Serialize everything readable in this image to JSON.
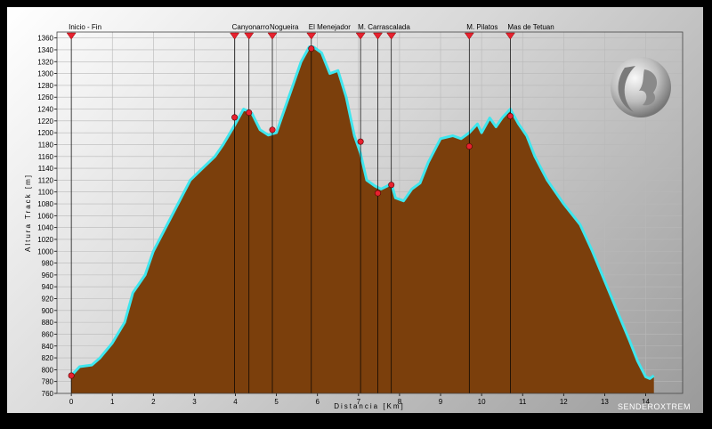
{
  "chart_data": {
    "type": "area",
    "title": "",
    "xlabel": "Distancia [Km]",
    "ylabel": "Altura Track [m]",
    "xlim": [
      -0.35,
      14.9
    ],
    "ylim": [
      760,
      1370
    ],
    "x_ticks": [
      0,
      1,
      2,
      3,
      4,
      5,
      6,
      7,
      8,
      9,
      10,
      11,
      12,
      13,
      14
    ],
    "y_ticks": [
      760,
      780,
      800,
      820,
      840,
      860,
      880,
      900,
      920,
      940,
      960,
      980,
      1000,
      1020,
      1040,
      1060,
      1080,
      1100,
      1120,
      1140,
      1160,
      1180,
      1200,
      1220,
      1240,
      1260,
      1280,
      1300,
      1320,
      1340,
      1360
    ],
    "grid": true,
    "legend": "none",
    "colors": {
      "fill": "#7b3f0c",
      "outline": "#3fe6ee",
      "marker": "#e8212f"
    },
    "profile": {
      "x": [
        0,
        0.2,
        0.5,
        0.7,
        1.0,
        1.3,
        1.5,
        1.8,
        2.0,
        2.3,
        2.6,
        2.9,
        3.2,
        3.5,
        3.7,
        4.0,
        4.2,
        4.4,
        4.6,
        4.8,
        5.0,
        5.2,
        5.4,
        5.6,
        5.8,
        5.9,
        6.1,
        6.3,
        6.5,
        6.7,
        6.9,
        7.05,
        7.2,
        7.4,
        7.55,
        7.7,
        7.8,
        7.9,
        8.1,
        8.3,
        8.5,
        8.7,
        9.0,
        9.3,
        9.5,
        9.7,
        9.9,
        10.0,
        10.2,
        10.35,
        10.5,
        10.7,
        10.9,
        11.1,
        11.3,
        11.6,
        12.0,
        12.4,
        12.7,
        13.0,
        13.3,
        13.6,
        13.8,
        14.0,
        14.1,
        14.2
      ],
      "y": [
        790,
        805,
        808,
        820,
        845,
        880,
        930,
        960,
        1000,
        1040,
        1080,
        1120,
        1140,
        1160,
        1180,
        1215,
        1240,
        1233,
        1205,
        1196,
        1200,
        1240,
        1280,
        1320,
        1345,
        1345,
        1335,
        1300,
        1305,
        1260,
        1195,
        1165,
        1120,
        1110,
        1105,
        1110,
        1115,
        1090,
        1085,
        1105,
        1115,
        1150,
        1190,
        1195,
        1190,
        1200,
        1215,
        1200,
        1225,
        1210,
        1225,
        1240,
        1215,
        1195,
        1160,
        1120,
        1080,
        1045,
        1000,
        950,
        900,
        850,
        815,
        788,
        785,
        790
      ]
    },
    "waypoints": [
      {
        "x": 0,
        "y": 790,
        "label": "Inicio - Fin"
      },
      {
        "x": 3.98,
        "y": 1226,
        "label": "Canyonarro"
      },
      {
        "x": 4.33,
        "y": 1234,
        "label": ""
      },
      {
        "x": 4.9,
        "y": 1205,
        "label": "Nogueira"
      },
      {
        "x": 5.85,
        "y": 1342,
        "label": "El Menejador"
      },
      {
        "x": 7.05,
        "y": 1185,
        "label": "M. Carrascalada"
      },
      {
        "x": 7.47,
        "y": 1098,
        "label": ""
      },
      {
        "x": 7.8,
        "y": 1112,
        "label": ""
      },
      {
        "x": 9.7,
        "y": 1177,
        "label": "M. Pilatos"
      },
      {
        "x": 10.7,
        "y": 1228,
        "label": "Mas de Tetuan"
      }
    ]
  },
  "watermark": "SENDEROXTREM",
  "logo_text": "SENDEROXTREM"
}
